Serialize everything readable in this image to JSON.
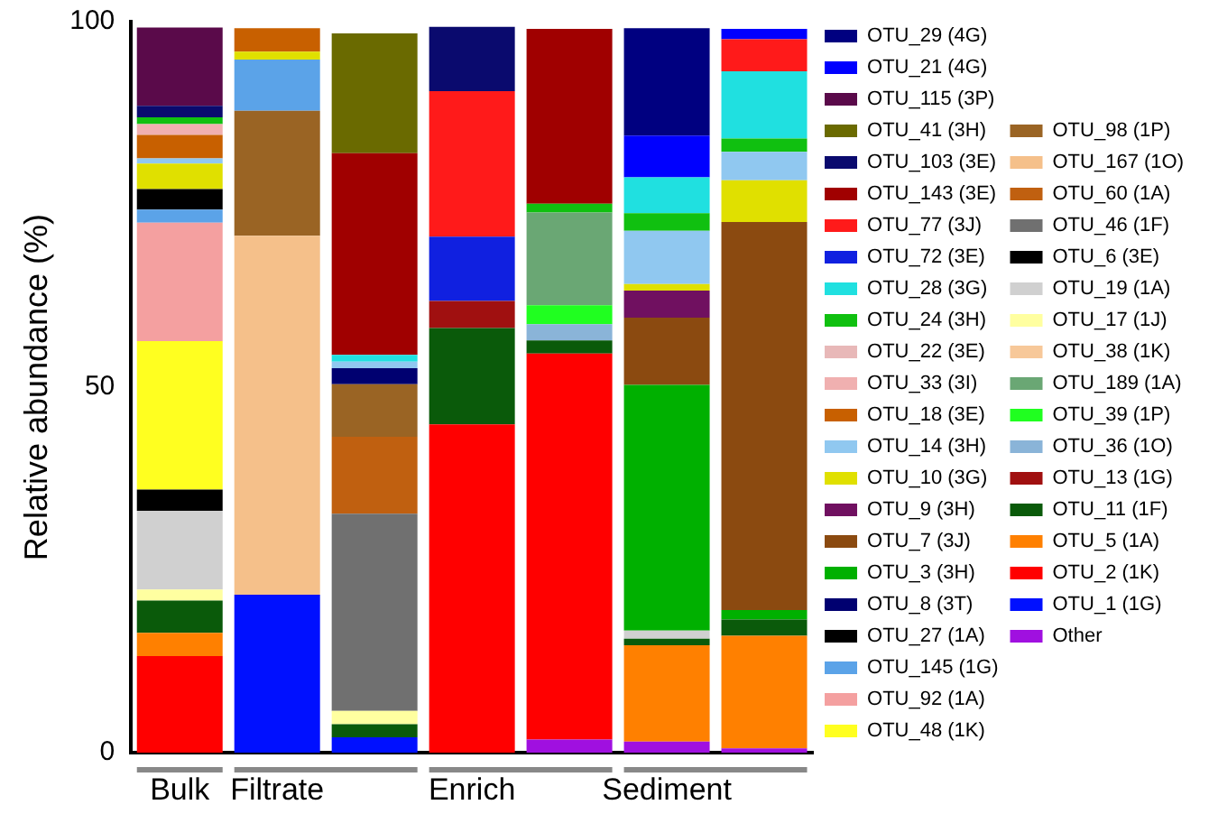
{
  "chart_data": {
    "type": "bar",
    "stacked": true,
    "ylabel": "Relative abundance (%)",
    "categories": [
      "Bulk",
      "Filtrate",
      null,
      "Enrich",
      null,
      "Sediment",
      null
    ],
    "ylim": [
      0,
      100
    ],
    "yticks": [
      0,
      50,
      100
    ],
    "grid": false,
    "legend": "right",
    "series": [
      {
        "name": "Other",
        "color": "#a010e0",
        "values": [
          null,
          null,
          null,
          null,
          1.8,
          1.5,
          0.6
        ]
      },
      {
        "name": "OTU_1 (1G)",
        "color": "#0010ff",
        "values": [
          null,
          21.6,
          2.1,
          null,
          null,
          null,
          null
        ]
      },
      {
        "name": "OTU_2 (1K)",
        "color": "#ff0000",
        "values": [
          13.2,
          null,
          null,
          44.9,
          52.8,
          null,
          null
        ]
      },
      {
        "name": "OTU_5 (1A)",
        "color": "#ff8000",
        "values": [
          3.2,
          null,
          null,
          null,
          null,
          13.2,
          15.4
        ]
      },
      {
        "name": "OTU_11 (1F)",
        "color": "#0a5a0a",
        "values": [
          4.4,
          null,
          1.8,
          13.2,
          1.8,
          0.9,
          2.2
        ]
      },
      {
        "name": "OTU_13 (1G)",
        "color": "#a01010",
        "values": [
          null,
          null,
          null,
          3.7,
          null,
          null,
          null
        ]
      },
      {
        "name": "OTU_36 (1O)",
        "color": "#8ab4d8",
        "values": [
          null,
          null,
          null,
          null,
          2.2,
          null,
          null
        ]
      },
      {
        "name": "OTU_39 (1P)",
        "color": "#20ff20",
        "values": [
          null,
          null,
          null,
          null,
          2.6,
          null,
          null
        ]
      },
      {
        "name": "OTU_189 (1A)",
        "color": "#6aa774",
        "values": [
          null,
          null,
          null,
          null,
          12.7,
          null,
          null
        ]
      },
      {
        "name": "OTU_38 (1K)",
        "color": "#f7c899",
        "values": [
          null,
          null,
          null,
          null,
          null,
          null,
          null
        ]
      },
      {
        "name": "OTU_17 (1J)",
        "color": "#ffffa0",
        "values": [
          1.5,
          null,
          1.8,
          null,
          null,
          null,
          null
        ]
      },
      {
        "name": "OTU_19 (1A)",
        "color": "#d0d0d0",
        "values": [
          10.8,
          null,
          null,
          null,
          null,
          1.1,
          null
        ]
      },
      {
        "name": "OTU_6 (3E)",
        "color": "#000000",
        "values": [
          2.9,
          null,
          null,
          null,
          null,
          null,
          null
        ]
      },
      {
        "name": "OTU_46 (1F)",
        "color": "#707070",
        "values": [
          null,
          null,
          27.0,
          null,
          null,
          null,
          null
        ]
      },
      {
        "name": "OTU_60 (1A)",
        "color": "#c06010",
        "values": [
          null,
          null,
          10.5,
          null,
          null,
          null,
          null
        ]
      },
      {
        "name": "OTU_167 (1O)",
        "color": "#f5c08a",
        "values": [
          null,
          49.1,
          null,
          null,
          null,
          null,
          null
        ]
      },
      {
        "name": "OTU_98 (1P)",
        "color": "#9a6424",
        "values": [
          null,
          17.1,
          7.2,
          null,
          null,
          null,
          null
        ]
      },
      {
        "name": "OTU_48 (1K)",
        "color": "#ffff20",
        "values": [
          20.3,
          null,
          null,
          null,
          null,
          null,
          null
        ]
      },
      {
        "name": "OTU_92 (1A)",
        "color": "#f4a0a0",
        "values": [
          16.2,
          null,
          null,
          null,
          null,
          null,
          null
        ]
      },
      {
        "name": "OTU_145 (1G)",
        "color": "#5ba3e8",
        "values": [
          1.8,
          7.0,
          null,
          null,
          null,
          null,
          null
        ]
      },
      {
        "name": "OTU_27 (1A)",
        "color": "#000000",
        "values": [
          2.8,
          null,
          null,
          null,
          null,
          null,
          null
        ]
      },
      {
        "name": "OTU_8 (3T)",
        "color": "#000070",
        "values": [
          null,
          null,
          2.2,
          null,
          null,
          null,
          null
        ]
      },
      {
        "name": "OTU_3 (3H)",
        "color": "#00b000",
        "values": [
          null,
          null,
          null,
          null,
          null,
          33.6,
          1.3
        ]
      },
      {
        "name": "OTU_7 (3J)",
        "color": "#8b4a10",
        "values": [
          null,
          null,
          null,
          null,
          null,
          9.2,
          53.1
        ]
      },
      {
        "name": "OTU_9 (3H)",
        "color": "#701060",
        "values": [
          null,
          null,
          null,
          null,
          null,
          3.7,
          null
        ]
      },
      {
        "name": "OTU_10 (3G)",
        "color": "#e0e000",
        "values": [
          3.5,
          1.1,
          null,
          null,
          null,
          0.9,
          5.7
        ]
      },
      {
        "name": "OTU_14 (3H)",
        "color": "#90c8f0",
        "values": [
          0.7,
          null,
          0.9,
          null,
          null,
          7.3,
          3.9
        ]
      },
      {
        "name": "OTU_18 (3E)",
        "color": "#c86000",
        "values": [
          3.2,
          3.2,
          null,
          null,
          null,
          null,
          null
        ]
      },
      {
        "name": "OTU_33 (3I)",
        "color": "#f0b0b0",
        "values": [
          1.5,
          null,
          null,
          null,
          null,
          null,
          null
        ]
      },
      {
        "name": "OTU_22 (3E)",
        "color": "#e8b8b8",
        "values": [
          null,
          null,
          null,
          null,
          null,
          null,
          null
        ]
      },
      {
        "name": "OTU_24 (3H)",
        "color": "#10c010",
        "values": [
          0.9,
          null,
          null,
          null,
          1.2,
          2.4,
          1.8
        ]
      },
      {
        "name": "OTU_28 (3G)",
        "color": "#20e0e0",
        "values": [
          null,
          null,
          0.9,
          null,
          null,
          4.9,
          9.2
        ]
      },
      {
        "name": "OTU_72 (3E)",
        "color": "#1020e0",
        "values": [
          null,
          null,
          null,
          8.8,
          null,
          null,
          null
        ]
      },
      {
        "name": "OTU_77 (3J)",
        "color": "#ff1a1a",
        "values": [
          null,
          null,
          null,
          19.9,
          null,
          null,
          4.4
        ]
      },
      {
        "name": "OTU_143 (3E)",
        "color": "#a00000",
        "values": [
          null,
          null,
          27.6,
          null,
          23.9,
          null,
          null
        ]
      },
      {
        "name": "OTU_103 (3E)",
        "color": "#0a0a6e",
        "values": [
          1.6,
          null,
          null,
          8.8,
          null,
          null,
          null
        ]
      },
      {
        "name": "OTU_41 (3H)",
        "color": "#6a6a00",
        "values": [
          null,
          null,
          16.4,
          null,
          null,
          null,
          null
        ]
      },
      {
        "name": "OTU_115 (3P)",
        "color": "#5a0a4a",
        "values": [
          10.7,
          null,
          null,
          null,
          null,
          null,
          null
        ]
      },
      {
        "name": "OTU_21 (4G)",
        "color": "#0000ff",
        "values": [
          null,
          null,
          null,
          null,
          null,
          5.7,
          1.4
        ]
      },
      {
        "name": "OTU_29 (4G)",
        "color": "#000080",
        "values": [
          null,
          null,
          null,
          null,
          null,
          14.7,
          null
        ]
      }
    ]
  }
}
